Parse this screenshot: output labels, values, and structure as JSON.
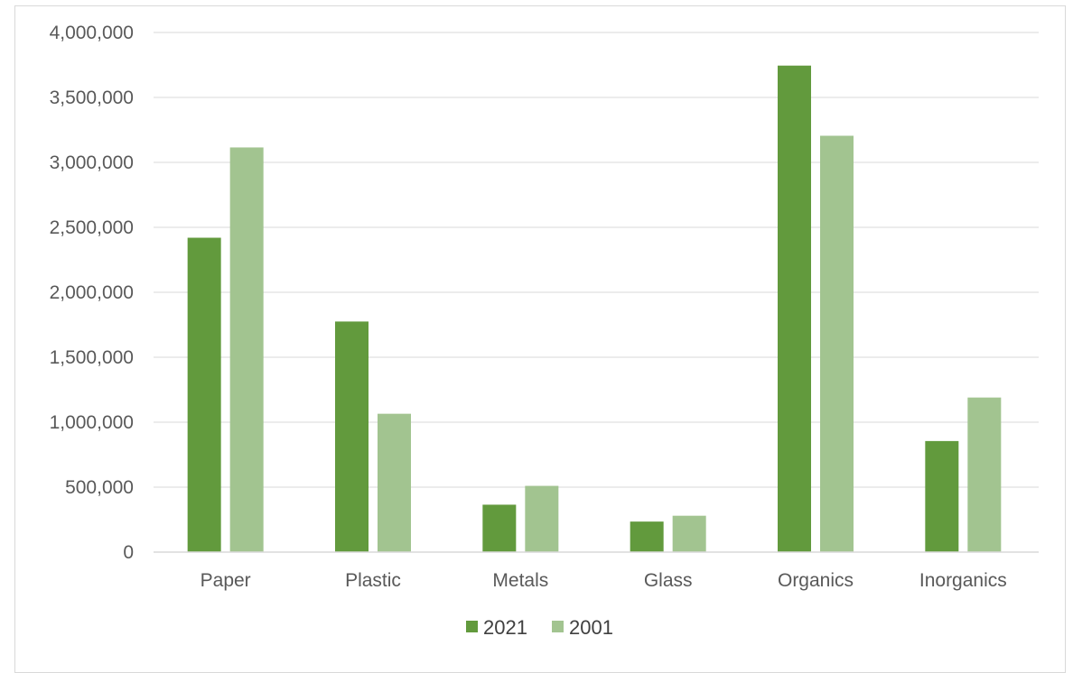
{
  "chart_data": {
    "type": "bar",
    "categories": [
      "Paper",
      "Plastic",
      "Metals",
      "Glass",
      "Organics",
      "Inorganics"
    ],
    "series": [
      {
        "name": "2021",
        "color": "#629a3d",
        "values": [
          2420000,
          1775000,
          365000,
          235000,
          3745000,
          855000
        ]
      },
      {
        "name": "2001",
        "color": "#a2c490",
        "values": [
          3115000,
          1065000,
          510000,
          280000,
          3205000,
          1190000
        ]
      }
    ],
    "ylim": [
      0,
      4000000
    ],
    "yticks": [
      0,
      500000,
      1000000,
      1500000,
      2000000,
      2500000,
      3000000,
      3500000,
      4000000
    ],
    "ytick_labels": [
      "0",
      "500,000",
      "1,000,000",
      "1,500,000",
      "2,000,000",
      "2,500,000",
      "3,000,000",
      "3,500,000",
      "4,000,000"
    ],
    "grid": true,
    "legend_position": "bottom-center",
    "title": "",
    "xlabel": "",
    "ylabel": ""
  }
}
